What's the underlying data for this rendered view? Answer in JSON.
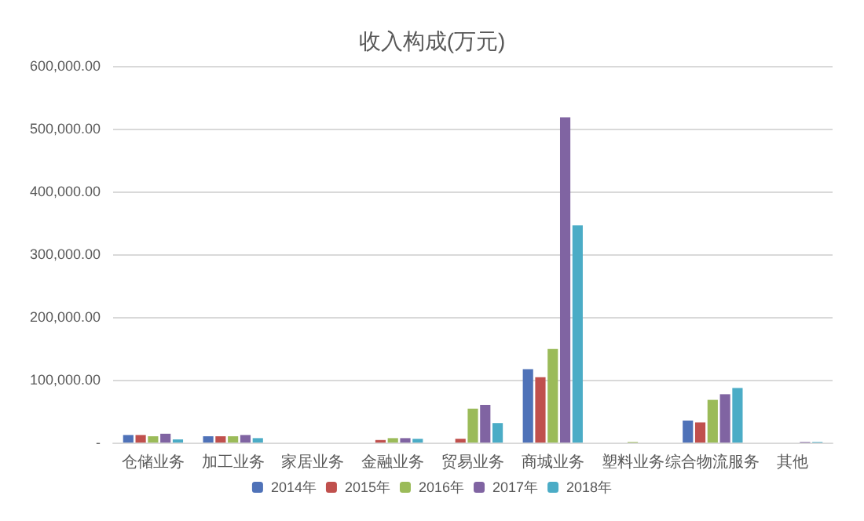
{
  "chart_data": {
    "type": "bar",
    "title": "收入构成(万元)",
    "categories": [
      "仓储业务",
      "加工业务",
      "家居业务",
      "金融业务",
      "贸易业务",
      "商城业务",
      "塑料业务",
      "综合物流服务",
      "其他"
    ],
    "series": [
      {
        "name": "2014年",
        "color": "#4f72b8",
        "values": [
          12000,
          10000,
          null,
          null,
          null,
          117000,
          null,
          35000,
          null
        ]
      },
      {
        "name": "2015年",
        "color": "#c0504d",
        "values": [
          12000,
          10000,
          null,
          4000,
          6000,
          104000,
          null,
          32000,
          null
        ]
      },
      {
        "name": "2016年",
        "color": "#9bbb59",
        "values": [
          10000,
          10000,
          null,
          7000,
          54000,
          149000,
          1000,
          68000,
          null
        ]
      },
      {
        "name": "2017年",
        "color": "#8064a2",
        "values": [
          14000,
          12000,
          null,
          7000,
          60000,
          518000,
          null,
          77000,
          1000
        ]
      },
      {
        "name": "2018年",
        "color": "#4bacc6",
        "values": [
          5000,
          7000,
          null,
          6000,
          31000,
          346000,
          null,
          87000,
          1000
        ]
      }
    ],
    "ylim": [
      0,
      600000
    ],
    "yticks": [
      {
        "value": 0,
        "label": "-"
      },
      {
        "value": 100000,
        "label": "100,000.00"
      },
      {
        "value": 200000,
        "label": "200,000.00"
      },
      {
        "value": 300000,
        "label": "300,000.00"
      },
      {
        "value": 400000,
        "label": "400,000.00"
      },
      {
        "value": 500000,
        "label": "500,000.00"
      },
      {
        "value": 600000,
        "label": "600,000.00"
      }
    ],
    "grid": "y",
    "legend": "bottom"
  }
}
